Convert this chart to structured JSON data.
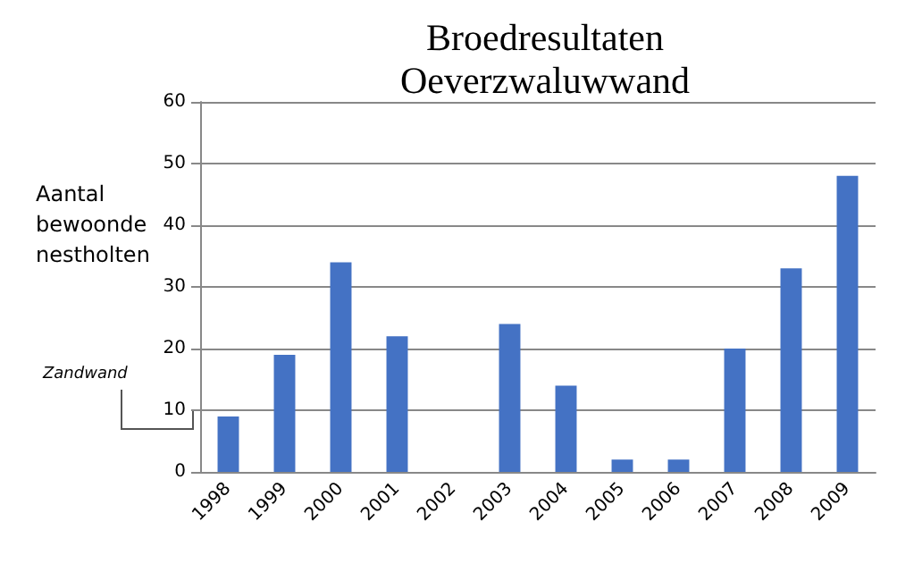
{
  "chart_data": {
    "type": "bar",
    "title": "Broedresultaten\nOeverzwaluwwand",
    "ylabel": "Aantal\nbewoonde\nnestholten",
    "categories": [
      "1998",
      "1999",
      "2000",
      "2001",
      "2002",
      "2003",
      "2004",
      "2005",
      "2006",
      "2007",
      "2008",
      "2009"
    ],
    "values": [
      9,
      19,
      34,
      22,
      0,
      24,
      14,
      2,
      2,
      20,
      33,
      48
    ],
    "color": "#4472c4",
    "ylim": [
      0,
      60
    ],
    "yticks": [
      0,
      10,
      20,
      30,
      40,
      50,
      60
    ],
    "grid": "y",
    "annotations": [
      "Zandwand"
    ]
  }
}
